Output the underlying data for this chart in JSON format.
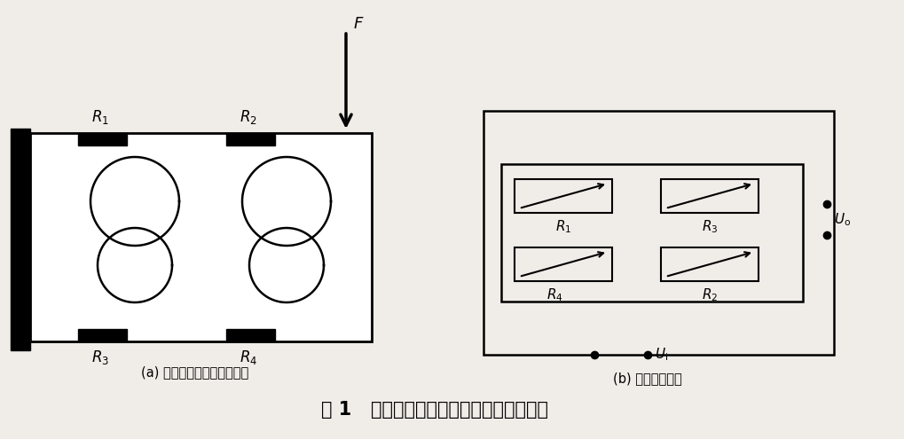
{
  "bg_color": "#f0ede8",
  "line_color": "#000000",
  "title_text": "图 1   双孔梁应变贴片受力及全桥测量电路",
  "caption_a": "(a) 双孔梁应变贴片受力电路",
  "caption_b": "(b) 全桥测量电路",
  "label_F": "$F$",
  "label_R1_a": "$R_1$",
  "label_R2_a": "$R_2$",
  "label_R3_a": "$R_3$",
  "label_R4_a": "$R_4$",
  "label_R1_b": "$R_1$",
  "label_R2_b": "$R_2$",
  "label_R3_b": "$R_3$",
  "label_R4_b": "$R_4$",
  "label_Ui": "$U_{\\rm i}$",
  "label_Uo": "$U_{\\rm o}$"
}
